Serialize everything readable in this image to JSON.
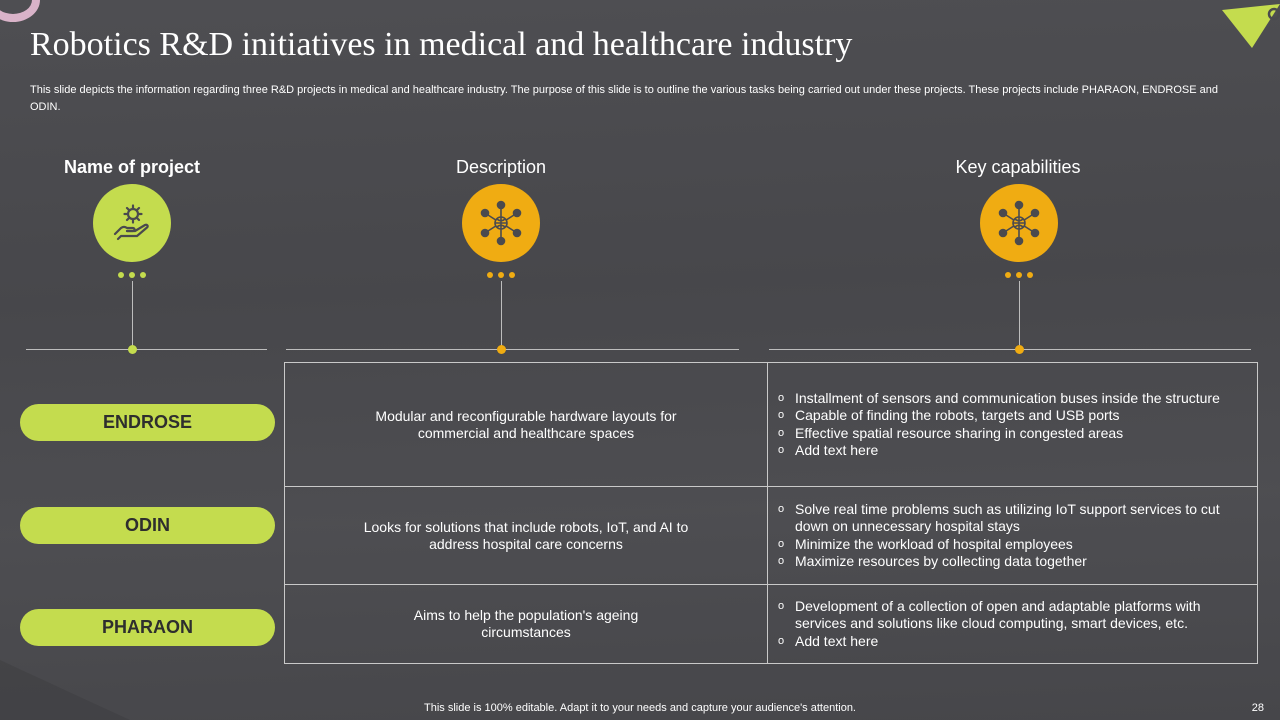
{
  "slide": {
    "title": "Robotics R&D initiatives in medical and healthcare industry",
    "subtitle": "This slide depicts the information regarding three R&D projects in medical and healthcare industry. The purpose of this slide is to outline the various tasks being carried out under these projects. These projects include PHARAON,  ENDROSE and ODIN.",
    "footer": "This slide is 100% editable. Adapt it to your needs and capture your audience's attention.",
    "page_number": "28"
  },
  "columns": {
    "name": "Name of project",
    "description": "Description",
    "capabilities": "Key capabilities"
  },
  "icons": {
    "name": "hand-gear-icon",
    "description": "network-hub-icon",
    "capabilities": "network-hub-icon"
  },
  "colors": {
    "background": "#4a4a4e",
    "green": "#c4dc4e",
    "gold": "#f0ac12"
  },
  "bullet": "o",
  "projects": [
    {
      "name": "ENDROSE",
      "description": "Modular and reconfigurable hardware layouts for commercial and healthcare spaces",
      "capabilities": [
        "Installment of sensors and communication buses inside the structure",
        "Capable of finding the robots, targets and USB ports",
        "Effective spatial resource sharing in congested areas",
        "Add text here"
      ]
    },
    {
      "name": "ODIN",
      "description": "Looks for solutions that include robots, IoT, and AI to address hospital care concerns",
      "capabilities": [
        "Solve real time problems such as utilizing IoT support services to cut down on unnecessary hospital stays",
        "Minimize the workload of hospital employees",
        "Maximize resources by collecting data together"
      ]
    },
    {
      "name": "PHARAON",
      "description": "Aims to help the population's ageing circumstances",
      "capabilities": [
        "Development of a collection of open and adaptable platforms with services and solutions like cloud computing, smart devices, etc.",
        "Add text here"
      ]
    }
  ]
}
